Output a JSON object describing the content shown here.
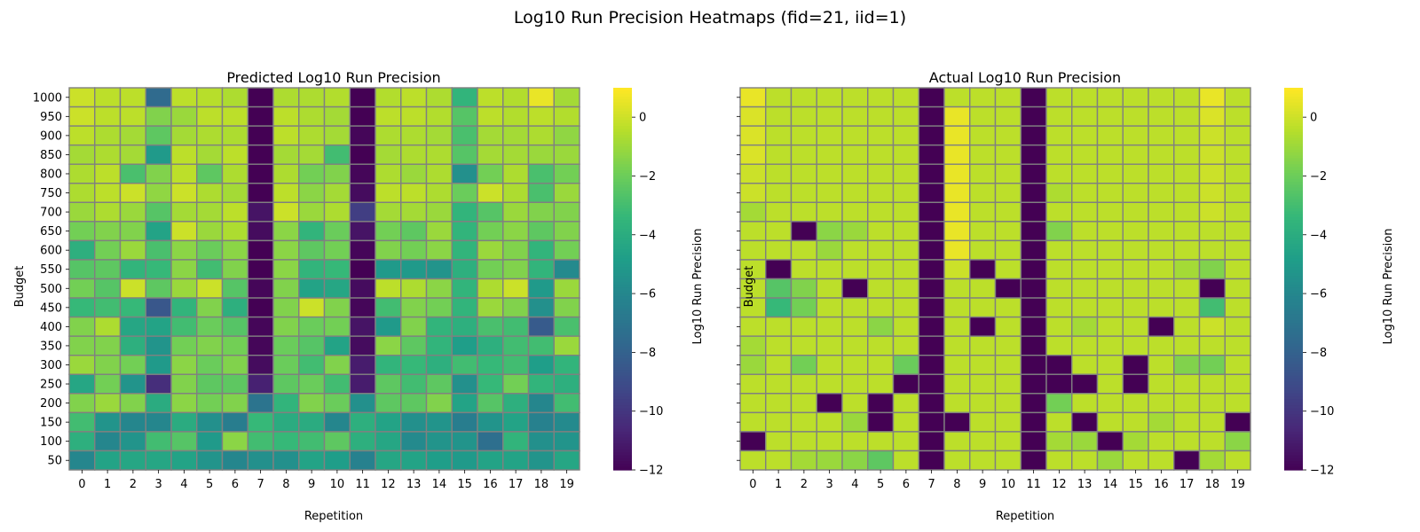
{
  "figure": {
    "title": "Log10 Run Precision Heatmaps (fid=21, iid=1)"
  },
  "colormap": {
    "name": "viridis",
    "stops": [
      "#440154",
      "#482878",
      "#3e4a89",
      "#31688e",
      "#26828e",
      "#1f9e89",
      "#35b779",
      "#6ece58",
      "#b5de2b",
      "#fde725"
    ]
  },
  "chart_data": [
    {
      "type": "heatmap",
      "title": "Predicted Log10 Run Precision",
      "xlabel": "Repetition",
      "ylabel": "Budget",
      "colorbar_label": "Log10 Run Precision",
      "vmin": -12,
      "vmax": 1,
      "colorbar_ticks": [
        0,
        -2,
        -4,
        -6,
        -8,
        -10,
        -12
      ],
      "colorbar_tick_labels": [
        "0",
        "−2",
        "−4",
        "−6",
        "−8",
        "−10",
        "−12"
      ],
      "x": [
        "0",
        "1",
        "2",
        "3",
        "4",
        "5",
        "6",
        "7",
        "8",
        "9",
        "10",
        "11",
        "12",
        "13",
        "14",
        "15",
        "16",
        "17",
        "18",
        "19"
      ],
      "y": [
        "1000",
        "950",
        "900",
        "850",
        "800",
        "750",
        "700",
        "650",
        "600",
        "550",
        "500",
        "450",
        "400",
        "350",
        "300",
        "250",
        "200",
        "150",
        "100",
        "50"
      ],
      "values": [
        [
          0.0,
          -0.3,
          -0.3,
          -7.5,
          -0.3,
          -0.4,
          -0.6,
          -12,
          -0.6,
          -0.6,
          -0.5,
          -12,
          -0.5,
          -0.3,
          -0.6,
          -3.5,
          -0.3,
          -0.5,
          0.6,
          -0.8
        ],
        [
          0.0,
          -0.3,
          -0.3,
          -1.5,
          -1.0,
          -0.3,
          -0.3,
          -12,
          -0.3,
          -0.6,
          -0.8,
          -12,
          -0.3,
          -0.3,
          -0.5,
          -2.5,
          -0.3,
          -0.5,
          -0.3,
          -0.5
        ],
        [
          -0.3,
          -0.6,
          -0.8,
          -2.3,
          -0.8,
          -0.6,
          -0.6,
          -12,
          -0.3,
          -0.6,
          -0.8,
          -11.8,
          -0.6,
          -0.6,
          -0.8,
          -2.8,
          -0.8,
          -0.8,
          -0.6,
          -1.2
        ],
        [
          -0.8,
          -0.6,
          -0.8,
          -5.0,
          -0.3,
          -0.8,
          -0.3,
          -12,
          -0.8,
          -0.8,
          -3.0,
          -12,
          -0.8,
          -0.6,
          -0.6,
          -2.5,
          -0.8,
          -0.8,
          -1.0,
          -1.0
        ],
        [
          -0.6,
          -0.3,
          -2.8,
          -1.5,
          -0.3,
          -2.3,
          -0.6,
          -12,
          -0.6,
          -1.8,
          -1.5,
          -11.8,
          -0.6,
          -1.0,
          -0.6,
          -5.5,
          -1.8,
          -0.6,
          -2.8,
          -1.8
        ],
        [
          -0.6,
          -0.3,
          0.0,
          -1.2,
          0.0,
          -0.6,
          -0.8,
          -12,
          -0.3,
          -1.3,
          -0.8,
          -11.6,
          -0.3,
          -0.3,
          -0.6,
          -2.0,
          0.0,
          -0.6,
          -2.8,
          -1.0
        ],
        [
          -1.0,
          -0.6,
          -1.0,
          -2.5,
          -0.8,
          -0.8,
          -0.3,
          -11.3,
          0.0,
          -1.0,
          -0.6,
          -9.6,
          -0.8,
          -0.8,
          -1.0,
          -3.5,
          -2.5,
          -1.0,
          -1.5,
          -1.5
        ],
        [
          -1.8,
          -1.5,
          -1.5,
          -4.5,
          0.0,
          -1.0,
          -0.6,
          -11.6,
          -1.3,
          -3.5,
          -2.0,
          -11.3,
          -1.8,
          -2.3,
          -1.0,
          -3.5,
          -1.8,
          -1.3,
          -2.3,
          -1.5
        ],
        [
          -3.8,
          -1.8,
          -1.0,
          -2.8,
          -1.3,
          -2.0,
          -1.3,
          -12,
          -1.3,
          -2.3,
          -1.8,
          -11.8,
          -1.5,
          -1.8,
          -1.3,
          -3.5,
          -1.0,
          -1.5,
          -3.5,
          -1.8
        ],
        [
          -2.5,
          -2.3,
          -3.5,
          -3.3,
          -1.3,
          -3.0,
          -1.5,
          -12,
          -1.3,
          -3.5,
          -3.3,
          -12,
          -5.0,
          -5.0,
          -5.3,
          -3.8,
          -1.8,
          -1.5,
          -3.5,
          -5.8
        ],
        [
          -1.8,
          -2.5,
          0.0,
          -2.3,
          -1.0,
          0.0,
          -2.5,
          -11.8,
          -1.5,
          -4.5,
          -4.3,
          -11.6,
          -0.3,
          -0.6,
          -1.3,
          -3.5,
          -0.6,
          0.0,
          -5.0,
          -1.0
        ],
        [
          -3.3,
          -3.0,
          -3.3,
          -8.5,
          -3.5,
          -1.5,
          -3.8,
          -12,
          -1.5,
          0.0,
          -1.5,
          -11.8,
          -3.0,
          -1.5,
          -1.8,
          -3.5,
          -1.0,
          -1.5,
          -5.5,
          -1.5
        ],
        [
          -1.5,
          -0.6,
          -4.3,
          -4.5,
          -3.0,
          -2.0,
          -2.5,
          -11.8,
          -1.5,
          -2.0,
          -1.8,
          -11.3,
          -5.0,
          -1.5,
          -3.5,
          -3.8,
          -2.8,
          -3.0,
          -8.3,
          -2.8
        ],
        [
          -1.5,
          -1.5,
          -3.8,
          -5.3,
          -1.8,
          -1.5,
          -1.8,
          -11.8,
          -2.0,
          -2.5,
          -4.5,
          -11.6,
          -1.3,
          -2.3,
          -3.5,
          -4.8,
          -3.8,
          -3.0,
          -3.0,
          -1.0
        ],
        [
          -1.0,
          -1.5,
          -1.8,
          -5.0,
          -1.3,
          -2.0,
          -1.5,
          -11.6,
          -2.0,
          -3.0,
          -1.5,
          -11.0,
          -3.5,
          -3.3,
          -3.8,
          -3.0,
          -3.3,
          -3.0,
          -4.8,
          -3.5
        ],
        [
          -4.3,
          -1.8,
          -5.3,
          -10.3,
          -1.5,
          -2.3,
          -2.3,
          -10.8,
          -2.3,
          -2.0,
          -3.0,
          -11.0,
          -2.3,
          -3.0,
          -2.3,
          -5.5,
          -3.3,
          -1.8,
          -3.5,
          -3.8
        ],
        [
          -1.5,
          -1.0,
          -1.5,
          -4.0,
          -1.3,
          -1.8,
          -1.5,
          -7.0,
          -3.5,
          -1.5,
          -2.0,
          -5.5,
          -2.3,
          -2.3,
          -1.5,
          -4.5,
          -2.5,
          -3.8,
          -6.0,
          -3.0
        ],
        [
          -3.0,
          -5.3,
          -6.0,
          -6.0,
          -4.0,
          -5.5,
          -6.5,
          -3.3,
          -4.0,
          -4.0,
          -6.0,
          -3.8,
          -4.5,
          -5.5,
          -5.3,
          -6.5,
          -5.3,
          -4.5,
          -6.3,
          -5.8
        ],
        [
          -3.8,
          -6.0,
          -5.3,
          -3.0,
          -2.5,
          -5.0,
          -1.3,
          -3.0,
          -3.3,
          -3.0,
          -2.3,
          -3.8,
          -4.3,
          -5.8,
          -5.3,
          -5.3,
          -7.3,
          -3.5,
          -5.5,
          -5.3
        ],
        [
          -6.0,
          -4.5,
          -4.3,
          -4.3,
          -4.5,
          -5.3,
          -6.0,
          -5.5,
          -5.5,
          -4.5,
          -4.8,
          -6.3,
          -4.3,
          -4.5,
          -4.8,
          -5.0,
          -4.5,
          -4.5,
          -5.3,
          -4.3
        ]
      ]
    },
    {
      "type": "heatmap",
      "title": "Actual Log10 Run Precision",
      "xlabel": "Repetition",
      "ylabel": "Budget",
      "colorbar_label": "Log10 Run Precision",
      "vmin": -12,
      "vmax": 1,
      "colorbar_ticks": [
        0,
        -2,
        -4,
        -6,
        -8,
        -10,
        -12
      ],
      "colorbar_tick_labels": [
        "0",
        "−2",
        "−4",
        "−6",
        "−8",
        "−10",
        "−12"
      ],
      "x": [
        "0",
        "1",
        "2",
        "3",
        "4",
        "5",
        "6",
        "7",
        "8",
        "9",
        "10",
        "11",
        "12",
        "13",
        "14",
        "15",
        "16",
        "17",
        "18",
        "19"
      ],
      "y": [
        "1000",
        "950",
        "900",
        "850",
        "800",
        "750",
        "700",
        "650",
        "600",
        "550",
        "500",
        "450",
        "400",
        "350",
        "300",
        "250",
        "200",
        "150",
        "100",
        "50"
      ],
      "values": [
        [
          0.6,
          -0.3,
          -0.3,
          -0.3,
          -0.3,
          -0.3,
          -0.3,
          -12,
          -0.3,
          -0.3,
          -0.3,
          -12,
          -0.3,
          -0.3,
          -0.3,
          -0.3,
          -0.3,
          -0.3,
          0.6,
          -0.3
        ],
        [
          0.3,
          -0.3,
          -0.3,
          -0.3,
          -0.3,
          -0.3,
          -0.3,
          -12,
          0.6,
          -0.3,
          -0.3,
          -12,
          -0.3,
          -0.3,
          -0.3,
          -0.3,
          -0.3,
          -0.3,
          0.3,
          -0.3
        ],
        [
          0.3,
          -0.3,
          -0.3,
          -0.3,
          -0.3,
          -0.3,
          -0.3,
          -12,
          0.6,
          -0.3,
          -0.3,
          -12,
          -0.3,
          -0.3,
          -0.3,
          -0.3,
          -0.3,
          -0.3,
          0.0,
          -0.3
        ],
        [
          0.3,
          -0.3,
          -0.3,
          -0.3,
          -0.3,
          -0.3,
          -0.3,
          -12,
          0.6,
          -0.3,
          -0.3,
          -12,
          -0.3,
          -0.3,
          -0.3,
          -0.3,
          -0.3,
          -0.3,
          0.0,
          -0.3
        ],
        [
          0.0,
          -0.3,
          -0.3,
          -0.3,
          -0.3,
          -0.3,
          -0.3,
          -12,
          0.6,
          -0.3,
          -0.3,
          -12,
          -0.3,
          -0.3,
          -0.3,
          -0.3,
          -0.3,
          -0.3,
          0.0,
          -0.3
        ],
        [
          0.0,
          -0.3,
          -0.3,
          -0.3,
          -0.3,
          -0.3,
          -0.3,
          -12,
          0.6,
          -0.3,
          -0.3,
          -12,
          -0.6,
          -0.3,
          -0.3,
          -0.3,
          -0.3,
          -0.3,
          0.0,
          -0.3
        ],
        [
          -0.8,
          -0.3,
          -0.3,
          -0.3,
          -0.3,
          -0.3,
          -0.3,
          -12,
          0.6,
          -0.3,
          -0.3,
          -12,
          -0.3,
          -0.3,
          -0.3,
          -0.3,
          -0.3,
          -0.3,
          0.0,
          -0.3
        ],
        [
          -0.3,
          -0.3,
          -12,
          -1.3,
          -1.0,
          -0.3,
          -0.3,
          -12,
          0.6,
          -0.3,
          -0.3,
          -12,
          -1.5,
          -0.3,
          -0.3,
          -0.3,
          -0.3,
          -0.3,
          -0.3,
          -0.3
        ],
        [
          -0.3,
          -0.3,
          -0.3,
          -1.0,
          -0.3,
          -0.3,
          -0.3,
          -12,
          0.6,
          -0.3,
          -0.3,
          -12,
          -0.3,
          -0.3,
          -0.3,
          -0.3,
          -0.3,
          -0.3,
          -0.3,
          -0.3
        ],
        [
          -0.3,
          -12,
          -0.3,
          -0.3,
          -0.3,
          -0.3,
          -0.3,
          -12,
          0.0,
          -12,
          -0.3,
          -12,
          -0.3,
          -0.3,
          -0.3,
          -0.3,
          -0.3,
          -0.8,
          -1.5,
          -0.3
        ],
        [
          -0.3,
          -2.5,
          -1.5,
          -0.3,
          -12,
          -0.3,
          -0.3,
          -12,
          -0.3,
          -0.3,
          -12,
          -12,
          -0.3,
          -0.3,
          -0.3,
          -0.3,
          -0.3,
          -0.3,
          -12,
          -0.3
        ],
        [
          -0.3,
          -3.3,
          -1.8,
          -0.3,
          -0.3,
          -0.3,
          -0.3,
          -12,
          -0.3,
          -0.3,
          -0.3,
          -12,
          -0.3,
          -0.3,
          -0.3,
          -0.3,
          -0.3,
          -0.3,
          -3.0,
          -0.3
        ],
        [
          -0.3,
          -0.3,
          -0.3,
          -0.3,
          -0.3,
          -1.3,
          -0.3,
          -12,
          -0.3,
          -12,
          -0.3,
          -12,
          -0.3,
          -0.8,
          -0.3,
          -0.3,
          -12,
          -0.3,
          0.0,
          -0.3
        ],
        [
          -0.8,
          -0.3,
          -0.3,
          -0.3,
          -0.3,
          -0.3,
          -0.3,
          -12,
          -0.3,
          -0.3,
          -0.3,
          -12,
          -0.3,
          -0.3,
          -0.3,
          -0.3,
          -0.3,
          -0.3,
          -0.3,
          -0.3
        ],
        [
          -1.0,
          -0.3,
          -1.8,
          -0.3,
          -0.3,
          -0.3,
          -2.0,
          -12,
          -0.3,
          -0.3,
          -0.3,
          -12,
          -12,
          -0.3,
          -0.3,
          -12,
          -0.3,
          -1.5,
          -1.8,
          -0.3
        ],
        [
          -0.3,
          -0.3,
          -0.3,
          -0.3,
          -0.3,
          -0.3,
          -12,
          -12,
          -0.3,
          -0.3,
          -0.3,
          -12,
          -12,
          -12,
          -0.3,
          -12,
          -0.3,
          -0.3,
          -0.3,
          -0.3
        ],
        [
          -0.3,
          -0.3,
          -0.3,
          -12,
          -0.3,
          -12,
          -0.3,
          -12,
          -0.3,
          -0.3,
          -0.3,
          -12,
          -1.8,
          -0.3,
          -0.3,
          -0.3,
          -0.3,
          -0.3,
          -0.3,
          -0.3
        ],
        [
          -0.3,
          -0.3,
          -0.3,
          -0.3,
          -1.0,
          -12,
          -0.3,
          -12,
          -12,
          -0.3,
          -0.3,
          -12,
          -0.3,
          -12,
          -0.3,
          -0.3,
          -0.8,
          -0.3,
          -0.3,
          -12
        ],
        [
          -12,
          -0.3,
          -0.3,
          -0.3,
          -0.3,
          -0.3,
          -0.3,
          -12,
          -0.3,
          -0.3,
          -0.3,
          -12,
          -0.8,
          -1.0,
          -12,
          -0.8,
          -0.3,
          -0.3,
          -0.3,
          -1.3
        ],
        [
          -0.3,
          -0.3,
          -0.8,
          -1.0,
          -1.3,
          -2.3,
          -0.3,
          -12,
          -0.3,
          -0.3,
          -0.3,
          -12,
          -0.3,
          -0.3,
          -1.0,
          -0.3,
          -0.3,
          -12,
          -0.8,
          -0.3
        ]
      ]
    }
  ]
}
